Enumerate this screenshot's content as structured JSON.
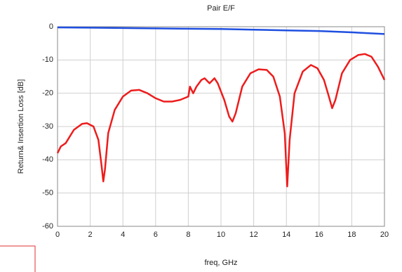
{
  "chart_data": {
    "type": "line",
    "title": "Pair E/F",
    "xlabel": "freq, GHz",
    "ylabel": "Return& Insertion Loss [dB]",
    "xlim": [
      0,
      20
    ],
    "xticks": [
      0,
      2,
      4,
      6,
      8,
      10,
      12,
      14,
      16,
      18,
      20
    ],
    "ylim": [
      -60,
      0
    ],
    "yticks": [
      0,
      -10,
      -20,
      -30,
      -40,
      -50,
      -60
    ],
    "grid": true,
    "series": [
      {
        "color": "#1f4fe0",
        "x": [
          0,
          2,
          4,
          6,
          8,
          10,
          12,
          14,
          16,
          18,
          20
        ],
        "values": [
          -0.2,
          -0.3,
          -0.4,
          -0.5,
          -0.6,
          -0.7,
          -0.9,
          -1.1,
          -1.3,
          -1.7,
          -2.2
        ]
      },
      {
        "color": "#ee1c1c",
        "x": [
          0,
          0.2,
          0.5,
          1,
          1.5,
          1.8,
          2.2,
          2.5,
          2.7,
          2.8,
          2.9,
          3.1,
          3.5,
          4,
          4.5,
          5,
          5.5,
          6,
          6.5,
          7,
          7.5,
          8,
          8.1,
          8.3,
          8.5,
          8.8,
          9,
          9.3,
          9.6,
          9.8,
          10.2,
          10.5,
          10.7,
          10.9,
          11.3,
          11.8,
          12.3,
          12.8,
          13.2,
          13.6,
          13.9,
          14.05,
          14.2,
          14.5,
          15,
          15.5,
          15.9,
          16.3,
          16.6,
          16.8,
          17,
          17.4,
          17.9,
          18.4,
          18.8,
          19.2,
          19.6,
          20
        ],
        "values": [
          -38,
          -36,
          -35,
          -31,
          -29.2,
          -29,
          -30,
          -34,
          -42,
          -46.5,
          -43,
          -32,
          -25,
          -21,
          -19.2,
          -19,
          -20,
          -21.5,
          -22.5,
          -22.5,
          -22,
          -21,
          -18,
          -20,
          -18,
          -16,
          -15.5,
          -17,
          -15.5,
          -17,
          -22,
          -27,
          -28.5,
          -26,
          -18,
          -14,
          -12.8,
          -13,
          -15,
          -21,
          -32,
          -48,
          -34,
          -20,
          -13.5,
          -11.5,
          -12.5,
          -16,
          -21,
          -24.5,
          -22,
          -14,
          -10,
          -8.5,
          -8.2,
          -9,
          -12,
          -16
        ]
      }
    ]
  }
}
